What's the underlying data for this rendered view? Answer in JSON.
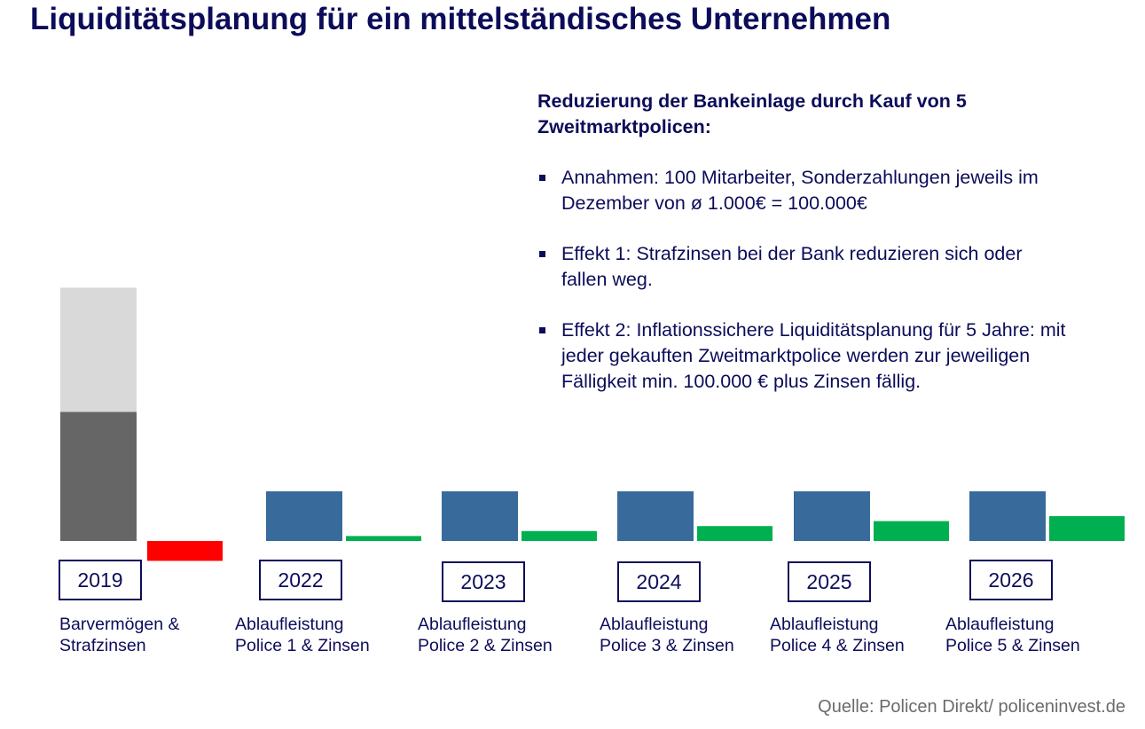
{
  "title": "Liquiditätsplanung für ein mittelständisches Unternehmen",
  "textbox": {
    "heading": "Reduzierung der Bankeinlage durch Kauf von 5 Zweitmarktpolicen:",
    "bullets": [
      "Annahmen: 100 Mitarbeiter, Sonderzahlungen jeweils im Dezember von ø 1.000€ = 100.000€",
      "Effekt 1: Strafzinsen bei der Bank reduzieren sich oder fallen weg.",
      "Effekt 2: Inflationssichere Liquiditätsplanung für 5 Jahre: mit jeder gekauften Zweitmarktpolice werden zur jeweiligen Fälligkeit min. 100.000 € plus Zinsen fällig."
    ]
  },
  "source": "Quelle: Policen Direkt/ policeninvest.de",
  "colors": {
    "title": "#0c0c5a",
    "bar_light_gray": "#d9d9d9",
    "bar_dark_gray": "#666666",
    "bar_blue": "#386a9b",
    "bar_green": "#00b050",
    "bar_red": "#ff0000",
    "source": "#6b6b6b"
  },
  "chart_data": {
    "type": "bar",
    "categories": [
      "2019",
      "2022",
      "2023",
      "2024",
      "2025",
      "2026"
    ],
    "descriptions": [
      [
        "Barvermögen &",
        "Strafzinsen"
      ],
      [
        "Ablaufleistung",
        "Police 1 & Zinsen"
      ],
      [
        "Ablaufleistung",
        "Police 2 & Zinsen"
      ],
      [
        "Ablaufleistung",
        "Police 3 & Zinsen"
      ],
      [
        "Ablaufleistung",
        "Police 4 & Zinsen"
      ],
      [
        "Ablaufleistung",
        "Police 5 & Zinsen"
      ]
    ],
    "bars": [
      {
        "category": "2019",
        "kind": "stack",
        "segments": [
          {
            "value": 2.6,
            "color": "#666666"
          },
          {
            "value": 2.5,
            "color": "#d9d9d9"
          }
        ],
        "side": {
          "value": -0.4,
          "color": "#ff0000"
        }
      },
      {
        "category": "2022",
        "kind": "pair",
        "main": {
          "value": 1.0,
          "color": "#386a9b"
        },
        "side": {
          "value": 0.1,
          "color": "#00b050"
        }
      },
      {
        "category": "2023",
        "kind": "pair",
        "main": {
          "value": 1.0,
          "color": "#386a9b"
        },
        "side": {
          "value": 0.2,
          "color": "#00b050"
        }
      },
      {
        "category": "2024",
        "kind": "pair",
        "main": {
          "value": 1.0,
          "color": "#386a9b"
        },
        "side": {
          "value": 0.3,
          "color": "#00b050"
        }
      },
      {
        "category": "2025",
        "kind": "pair",
        "main": {
          "value": 1.0,
          "color": "#386a9b"
        },
        "side": {
          "value": 0.4,
          "color": "#00b050"
        }
      },
      {
        "category": "2026",
        "kind": "pair",
        "main": {
          "value": 1.0,
          "color": "#386a9b"
        },
        "side": {
          "value": 0.5,
          "color": "#00b050"
        }
      }
    ],
    "title": "",
    "xlabel": "",
    "ylabel": "",
    "grid": false,
    "legend": "none"
  }
}
